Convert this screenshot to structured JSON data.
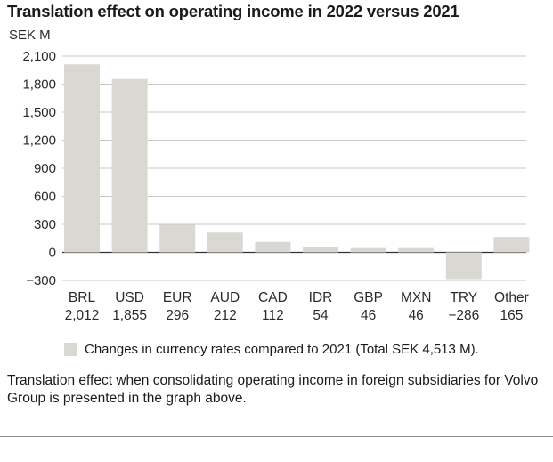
{
  "colors": {
    "bar": "#d9d8d3",
    "grid": "#b5b5b5",
    "axis": "#333333",
    "text": "#2b2b2b"
  },
  "chart_data": {
    "type": "bar",
    "title": "Translation effect on operating income in 2022 versus 2021",
    "ylabel": "SEK M",
    "xlabel": "",
    "ylim": [
      -300,
      2100
    ],
    "yticks": [
      2100,
      1800,
      1500,
      1200,
      900,
      600,
      300,
      0,
      -300
    ],
    "ytick_labels": [
      "2,100",
      "1,800",
      "1,500",
      "1,200",
      "900",
      "600",
      "300",
      "0",
      "−300"
    ],
    "categories": [
      "BRL",
      "USD",
      "EUR",
      "AUD",
      "CAD",
      "IDR",
      "GBP",
      "MXN",
      "TRY",
      "Other"
    ],
    "values": [
      2012,
      1855,
      296,
      212,
      112,
      54,
      46,
      46,
      -286,
      165
    ],
    "value_labels": [
      "2,012",
      "1,855",
      "296",
      "212",
      "112",
      "54",
      "46",
      "46",
      "−286",
      "165"
    ],
    "grid": true,
    "legend": {
      "position": "bottom",
      "entries": [
        "Changes in currency rates compared to 2021 (Total SEK 4,513 M)."
      ]
    }
  },
  "footnote": "Translation effect when consolidating operating income in foreign subsidiaries for Volvo Group is presented in the graph above."
}
